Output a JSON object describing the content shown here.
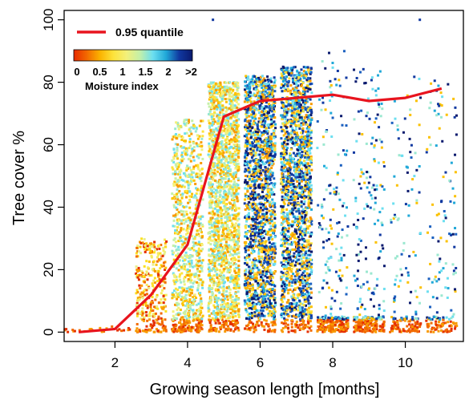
{
  "chart_data": {
    "type": "scatter",
    "xlabel": "Growing season length [months]",
    "ylabel": "Tree cover %",
    "xlim": [
      0.6,
      11.6
    ],
    "ylim": [
      -3,
      103
    ],
    "x_ticks": [
      2,
      4,
      6,
      8,
      10
    ],
    "y_ticks": [
      0,
      20,
      40,
      60,
      80,
      100
    ],
    "grid": false,
    "legend": {
      "placement": "top-left",
      "line_label": "0.95 quantile",
      "line_color": "#e8141e",
      "colorbar_title": "Moisture index",
      "colorbar_ticks": [
        "0",
        "0.5",
        "1",
        "1.5",
        "2",
        ">2"
      ],
      "colorbar_colors": [
        "#e82a00",
        "#f26a00",
        "#fbb300",
        "#fde33b",
        "#f3f07a",
        "#c5f0a8",
        "#6cdff0",
        "#20a8d8",
        "#1038a0",
        "#0a1a6e"
      ]
    },
    "series": [
      {
        "name": "0.95 quantile",
        "type": "line",
        "color": "#e8141e",
        "x": [
          1,
          2,
          3,
          4,
          5,
          6,
          7,
          8,
          9,
          10,
          11
        ],
        "y": [
          0,
          1,
          12,
          28,
          69,
          74,
          75,
          76,
          74,
          75,
          78
        ]
      }
    ],
    "point_clusters": [
      {
        "x": 1,
        "ymax": 1,
        "density": "very low",
        "moisture": "low"
      },
      {
        "x": 2,
        "ymax": 2,
        "density": "very low",
        "moisture": "low"
      },
      {
        "x": 3,
        "ymax": 30,
        "density": "medium",
        "moisture": "low"
      },
      {
        "x": 4,
        "ymax": 68,
        "density": "high",
        "moisture": "low-medium"
      },
      {
        "x": 5,
        "ymax": 80,
        "density": "very high",
        "moisture": "low-medium"
      },
      {
        "x": 6,
        "ymax": 82,
        "density": "very high",
        "moisture": "mixed, high"
      },
      {
        "x": 7,
        "ymax": 85,
        "density": "very high",
        "moisture": "mixed"
      },
      {
        "x": 8,
        "ymax": 90,
        "density": "medium",
        "moisture": "high"
      },
      {
        "x": 9,
        "ymax": 85,
        "density": "medium",
        "moisture": "high"
      },
      {
        "x": 10,
        "ymax": 82,
        "density": "low",
        "moisture": "high"
      },
      {
        "x": 11,
        "ymax": 81,
        "density": "low",
        "moisture": "high"
      }
    ],
    "outliers": [
      {
        "x": 4.7,
        "y": 100
      },
      {
        "x": 10.4,
        "y": 100
      }
    ]
  }
}
